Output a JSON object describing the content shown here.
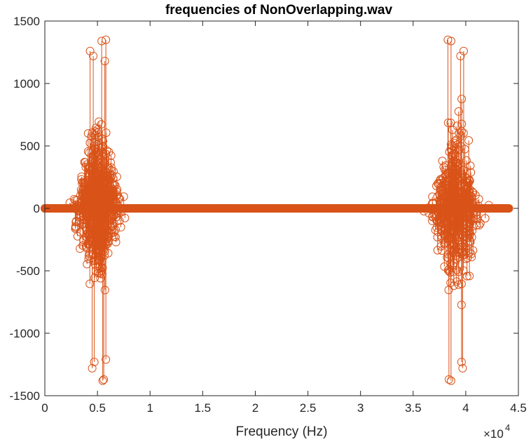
{
  "chart_data": {
    "type": "stem",
    "title": "frequencies of NonOverlapping.wav",
    "xlabel": "Frequency (Hz)",
    "ylabel": "",
    "x_exponent_label": "×10",
    "x_exponent_power": "4",
    "xlim": [
      0,
      4.5
    ],
    "ylim": [
      -1500,
      1500
    ],
    "x_ticks": [
      0,
      0.5,
      1,
      1.5,
      2,
      2.5,
      3,
      3.5,
      4,
      4.5
    ],
    "x_tick_labels": [
      "0",
      "0.5",
      "1",
      "1.5",
      "2",
      "2.5",
      "3",
      "3.5",
      "4",
      "4.5"
    ],
    "y_ticks": [
      -1500,
      -1000,
      -500,
      0,
      500,
      1000,
      1500
    ],
    "y_tick_labels": [
      "-1500",
      "-1000",
      "-500",
      "0",
      "500",
      "1000",
      "1500"
    ],
    "marker": "open-circle",
    "grid": false,
    "box": true,
    "colors": {
      "series": "#D95319",
      "axes": "#262626",
      "background": "#ffffff"
    },
    "series": [
      {
        "x_range": [
          0,
          4.41
        ],
        "peaks": [
          {
            "x": 0.43,
            "y": 1260
          },
          {
            "x": 0.45,
            "y": -1280
          },
          {
            "x": 0.46,
            "y": 1220
          },
          {
            "x": 0.47,
            "y": -1230
          },
          {
            "x": 0.54,
            "y": 1340
          },
          {
            "x": 0.55,
            "y": -1380
          },
          {
            "x": 0.56,
            "y": -1370
          },
          {
            "x": 0.58,
            "y": 1350
          },
          {
            "x": 0.57,
            "y": 1180
          },
          {
            "x": 0.58,
            "y": -1210
          },
          {
            "x": 3.83,
            "y": 1350
          },
          {
            "x": 3.84,
            "y": -1370
          },
          {
            "x": 3.86,
            "y": 1340
          },
          {
            "x": 3.86,
            "y": -1380
          },
          {
            "x": 3.95,
            "y": 1220
          },
          {
            "x": 3.96,
            "y": -1230
          },
          {
            "x": 3.98,
            "y": 1260
          },
          {
            "x": 3.97,
            "y": -1280
          }
        ]
      }
    ]
  }
}
